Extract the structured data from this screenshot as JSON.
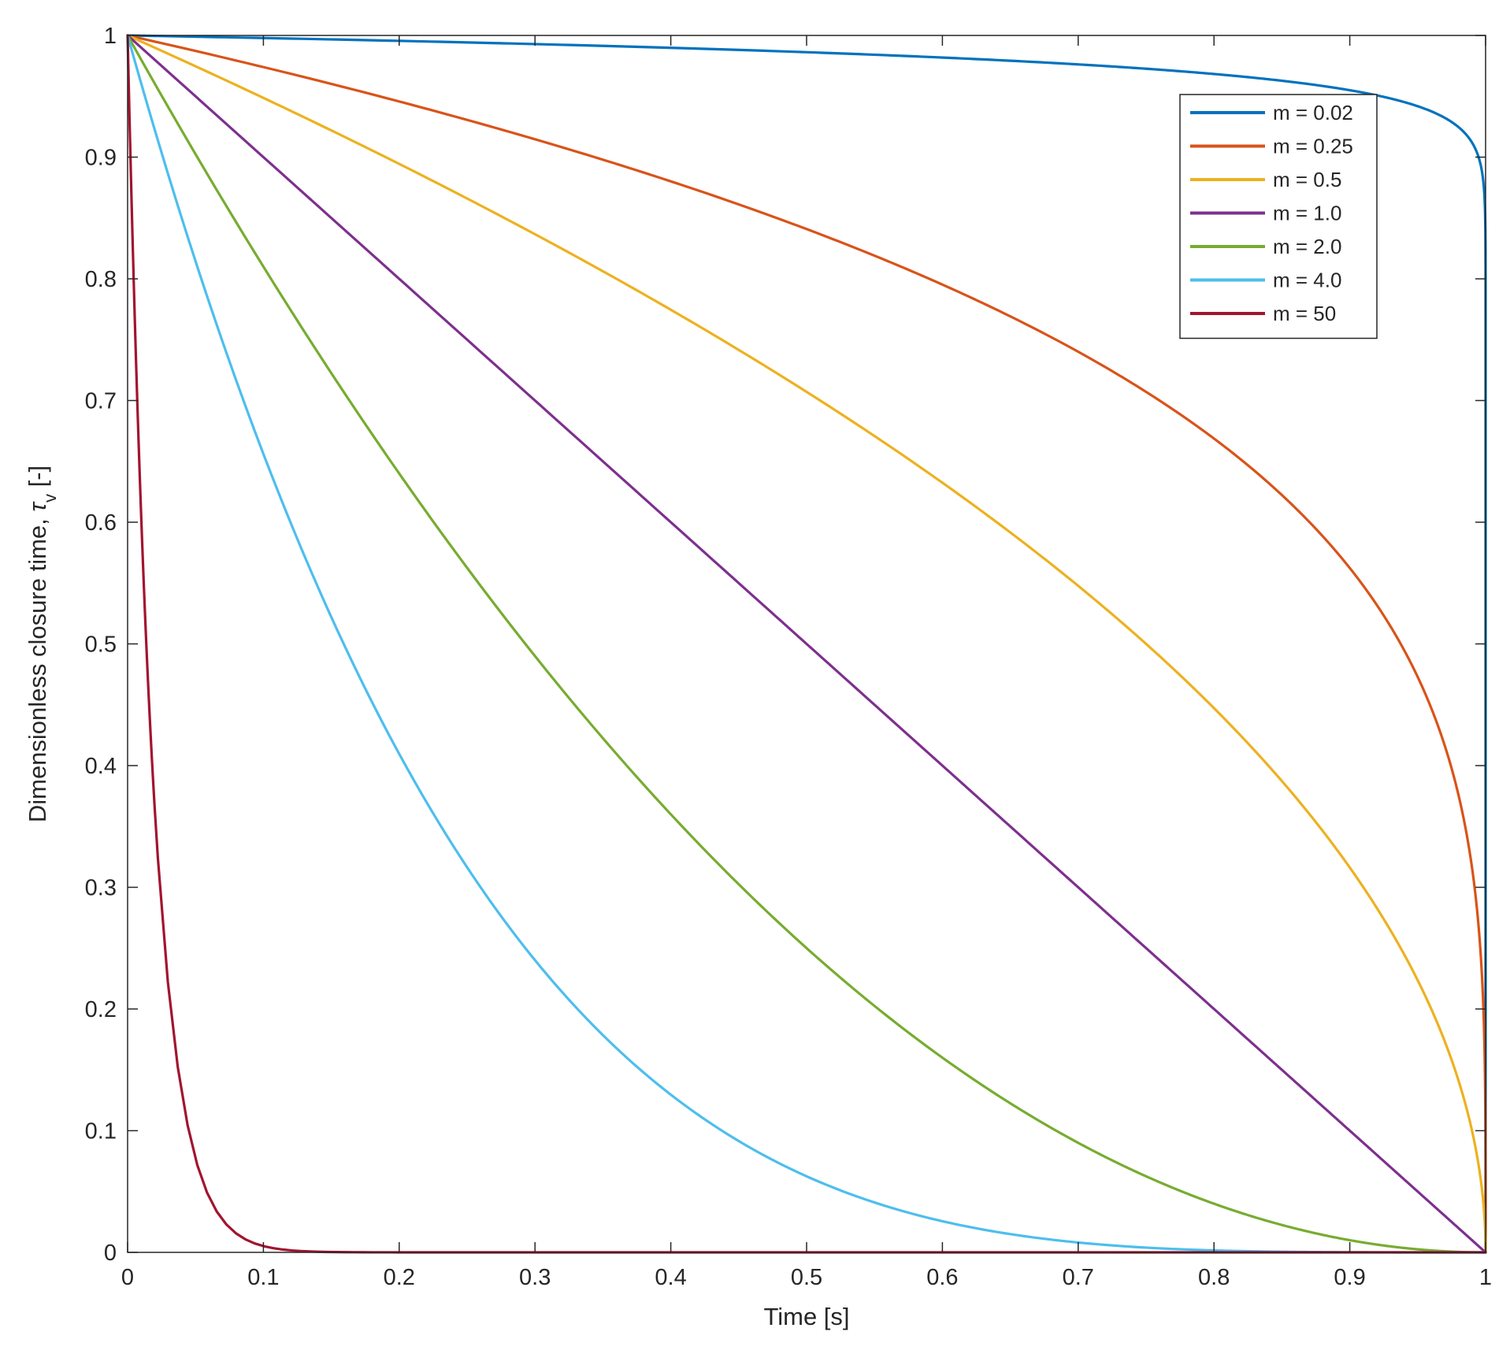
{
  "chart_data": {
    "type": "line",
    "xlabel": "Time [s]",
    "ylabel": "Dimensionless closure time, ",
    "ylabel_symbol": "τ",
    "ylabel_subscript": "v",
    "ylabel_unit": " [-]",
    "xlim": [
      0,
      1
    ],
    "ylim": [
      0,
      1
    ],
    "xticks": [
      "0",
      "0.1",
      "0.2",
      "0.3",
      "0.4",
      "0.5",
      "0.6",
      "0.7",
      "0.8",
      "0.9",
      "1"
    ],
    "yticks": [
      "0",
      "0.1",
      "0.2",
      "0.3",
      "0.4",
      "0.5",
      "0.6",
      "0.7",
      "0.8",
      "0.9",
      "1"
    ],
    "grid": false,
    "legend_position": "top-right",
    "function": "y = (1 - x)^m",
    "series": [
      {
        "name": "m = 0.02",
        "m": 0.02,
        "color": "#0072BD"
      },
      {
        "name": "m = 0.25",
        "m": 0.25,
        "color": "#D95319"
      },
      {
        "name": "m = 0.5",
        "m": 0.5,
        "color": "#EDB120"
      },
      {
        "name": "m = 1.0",
        "m": 1.0,
        "color": "#7E2F8E"
      },
      {
        "name": "m = 2.0",
        "m": 2.0,
        "color": "#77AC30"
      },
      {
        "name": "m = 4.0",
        "m": 4.0,
        "color": "#4DBEEE"
      },
      {
        "name": "m = 50",
        "m": 50,
        "color": "#A2142F"
      }
    ]
  }
}
